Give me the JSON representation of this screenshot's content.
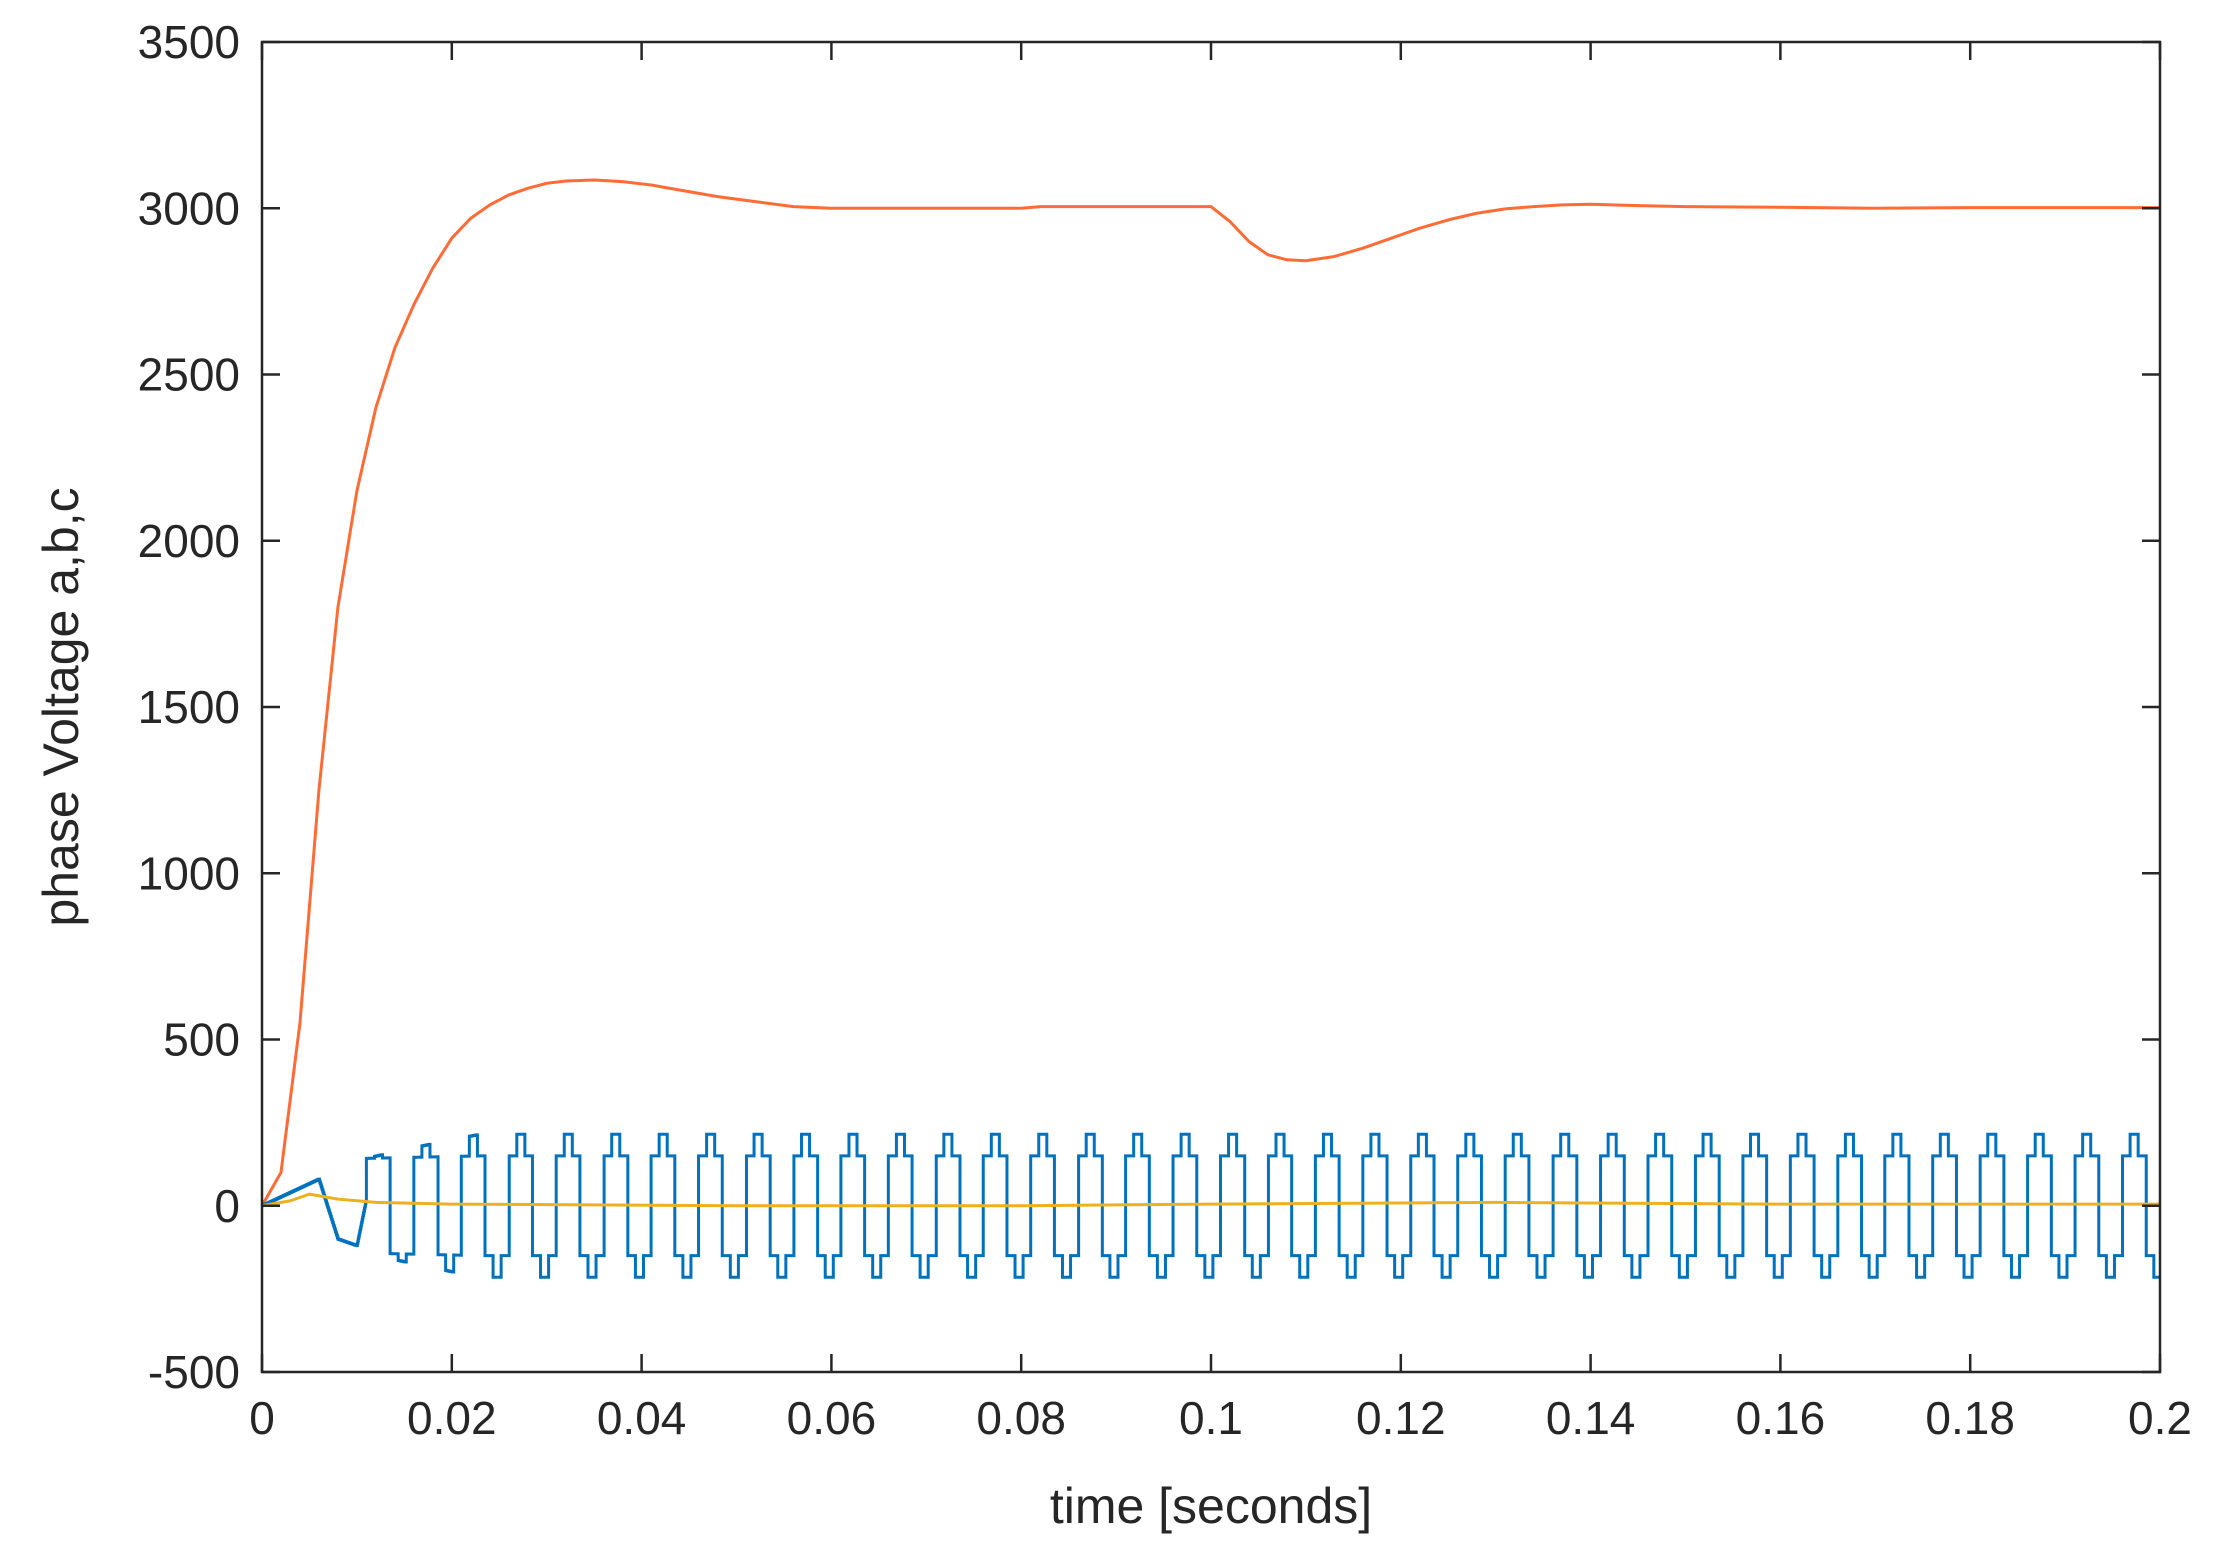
{
  "chart_data": {
    "type": "line",
    "title": "",
    "xlabel": "time [seconds]",
    "ylabel": "phase Voltage a,b,c",
    "xlim": [
      0,
      0.2
    ],
    "ylim": [
      -500,
      3500
    ],
    "xticks": [
      0,
      0.02,
      0.04,
      0.06,
      0.08,
      0.1,
      0.12,
      0.14,
      0.16,
      0.18,
      0.2
    ],
    "xtick_labels": [
      "0",
      "0.02",
      "0.04",
      "0.06",
      "0.08",
      "0.1",
      "0.12",
      "0.14",
      "0.16",
      "0.18",
      "0.2"
    ],
    "yticks": [
      -500,
      0,
      500,
      1000,
      1500,
      2000,
      2500,
      3000,
      3500
    ],
    "ytick_labels": [
      "-500",
      "0",
      "500",
      "1000",
      "1500",
      "2000",
      "2500",
      "3000",
      "3500"
    ],
    "grid": false,
    "legend": "none",
    "series": [
      {
        "color": "#ff6b35",
        "x": [
          0,
          0.002,
          0.004,
          0.006,
          0.008,
          0.01,
          0.012,
          0.014,
          0.016,
          0.018,
          0.02,
          0.022,
          0.024,
          0.026,
          0.028,
          0.03,
          0.032,
          0.035,
          0.038,
          0.041,
          0.044,
          0.048,
          0.052,
          0.056,
          0.06,
          0.07,
          0.08,
          0.082,
          0.09,
          0.1,
          0.102,
          0.104,
          0.106,
          0.108,
          0.11,
          0.113,
          0.116,
          0.119,
          0.122,
          0.125,
          0.128,
          0.131,
          0.134,
          0.137,
          0.14,
          0.145,
          0.15,
          0.16,
          0.17,
          0.18,
          0.19,
          0.2
        ],
        "values": [
          0,
          100,
          550,
          1250,
          1800,
          2150,
          2400,
          2580,
          2710,
          2820,
          2910,
          2970,
          3010,
          3040,
          3060,
          3075,
          3082,
          3085,
          3080,
          3070,
          3055,
          3035,
          3020,
          3005,
          3000,
          3000,
          3000,
          3005,
          3005,
          3005,
          2960,
          2900,
          2860,
          2845,
          2842,
          2855,
          2880,
          2910,
          2940,
          2965,
          2985,
          2998,
          3005,
          3010,
          3012,
          3008,
          3005,
          3003,
          3000,
          3002,
          3002,
          3002
        ]
      },
      {
        "color": "#0072bd",
        "shape": "six-step square wave",
        "period": 0.005,
        "amplitude_inner": 150,
        "amplitude_outer": 215,
        "x": [
          0,
          0.003,
          0.006,
          0.008,
          0.01,
          0.012,
          0.015,
          0.018,
          0.02
        ],
        "values": [
          0,
          40,
          80,
          -100,
          -120,
          160,
          -180,
          200,
          -210
        ]
      },
      {
        "color": "#edb120",
        "x": [
          0,
          0.003,
          0.005,
          0.008,
          0.012,
          0.02,
          0.05,
          0.08,
          0.1,
          0.13,
          0.16,
          0.2
        ],
        "values": [
          0,
          15,
          35,
          20,
          10,
          5,
          0,
          0,
          5,
          10,
          5,
          5
        ]
      }
    ]
  }
}
